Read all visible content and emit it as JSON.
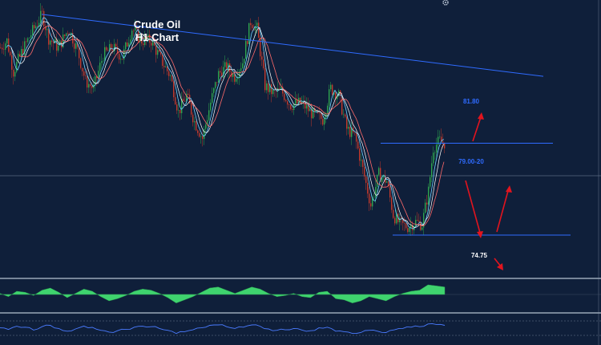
{
  "chart_data": {
    "type": "line",
    "title": "Crude Oil",
    "subtitle": "H1 Chart",
    "xlabel": "",
    "ylabel": "",
    "ylim": [
      73.0,
      84.6
    ],
    "grid": false,
    "colors": {
      "background": "#0f1f3a",
      "panel_border": "#9aa7b8",
      "trendline": "#2f6bff",
      "level_line": "#2f6bff",
      "label_text": "#2f6bff",
      "arrow": "#e2141e",
      "bull_candle": "#2ea44f",
      "bear_candle": "#c0392b",
      "ma_fast": "#6fd3ff",
      "ma_mid": "#ffffff",
      "ma_slow": "#ff6a6a",
      "oscillator_fill": "#3fd36e",
      "rsi_line": "#4a7bff"
    },
    "price_path": [
      [
        0,
        82.6
      ],
      [
        8,
        82.9
      ],
      [
        16,
        81.6
      ],
      [
        26,
        82.4
      ],
      [
        40,
        83.3
      ],
      [
        52,
        84.0
      ],
      [
        60,
        83.0
      ],
      [
        72,
        82.6
      ],
      [
        85,
        83.4
      ],
      [
        96,
        82.5
      ],
      [
        106,
        81.2
      ],
      [
        116,
        80.9
      ],
      [
        128,
        82.3
      ],
      [
        140,
        82.6
      ],
      [
        152,
        82.2
      ],
      [
        164,
        83.4
      ],
      [
        176,
        82.9
      ],
      [
        188,
        82.9
      ],
      [
        200,
        82.1
      ],
      [
        212,
        81.4
      ],
      [
        222,
        79.9
      ],
      [
        232,
        80.6
      ],
      [
        242,
        79.5
      ],
      [
        252,
        78.8
      ],
      [
        262,
        80.3
      ],
      [
        272,
        81.5
      ],
      [
        282,
        81.8
      ],
      [
        292,
        81.4
      ],
      [
        302,
        82.0
      ],
      [
        312,
        83.7
      ],
      [
        320,
        83.4
      ],
      [
        330,
        81.0
      ],
      [
        340,
        80.7
      ],
      [
        350,
        80.8
      ],
      [
        362,
        80.2
      ],
      [
        375,
        80.3
      ],
      [
        390,
        79.8
      ],
      [
        402,
        79.6
      ],
      [
        412,
        80.9
      ],
      [
        422,
        80.6
      ],
      [
        432,
        79.2
      ],
      [
        442,
        78.9
      ],
      [
        452,
        77.5
      ],
      [
        462,
        76.0
      ],
      [
        472,
        77.3
      ],
      [
        482,
        77.0
      ],
      [
        490,
        75.6
      ],
      [
        498,
        75.2
      ],
      [
        508,
        75.1
      ],
      [
        518,
        75.3
      ],
      [
        526,
        75.2
      ],
      [
        534,
        76.6
      ],
      [
        540,
        78.4
      ],
      [
        548,
        78.7
      ],
      [
        555,
        78.6
      ]
    ],
    "trendline": {
      "from": [
        52,
        84.0
      ],
      "to": [
        678,
        81.4
      ]
    },
    "levels": [
      {
        "value": 78.6,
        "x_start": 475,
        "x_end": 690
      },
      {
        "value": 74.75,
        "x_start": 490,
        "x_end": 712
      }
    ],
    "annotations": {
      "target_label": "81.80",
      "resistance_label": "79.00-20",
      "support_label": "74.75"
    },
    "oscillator": {
      "ylim": [
        -1.2,
        1.2
      ],
      "x_end": 555,
      "values": [
        0.1,
        -0.2,
        0.3,
        0.2,
        -0.1,
        0.4,
        0.6,
        0.2,
        -0.3,
        0.1,
        0.5,
        0.3,
        -0.2,
        -0.6,
        -0.4,
        -0.1,
        0.3,
        0.5,
        0.4,
        0.1,
        -0.3,
        -0.8,
        -0.5,
        -0.2,
        0.2,
        0.6,
        0.7,
        0.4,
        0.1,
        0.4,
        0.7,
        0.5,
        0.1,
        -0.2,
        -0.1,
        0.1,
        -0.2,
        -0.3,
        0.2,
        0.3,
        -0.4,
        -0.5,
        -0.8,
        -0.6,
        -0.2,
        -0.4,
        -0.6,
        -0.2,
        0.1,
        0.3,
        0.4,
        0.9,
        0.8,
        0.7
      ]
    },
    "rsi": {
      "ylim": [
        0,
        100
      ],
      "x_end": 555,
      "values": [
        55,
        48,
        62,
        58,
        45,
        60,
        66,
        52,
        40,
        50,
        63,
        57,
        44,
        36,
        42,
        48,
        58,
        62,
        60,
        52,
        44,
        30,
        38,
        46,
        55,
        66,
        68,
        60,
        52,
        58,
        68,
        62,
        50,
        44,
        46,
        52,
        45,
        42,
        55,
        58,
        40,
        38,
        30,
        34,
        44,
        40,
        34,
        46,
        52,
        58,
        60,
        72,
        70,
        66
      ]
    }
  }
}
